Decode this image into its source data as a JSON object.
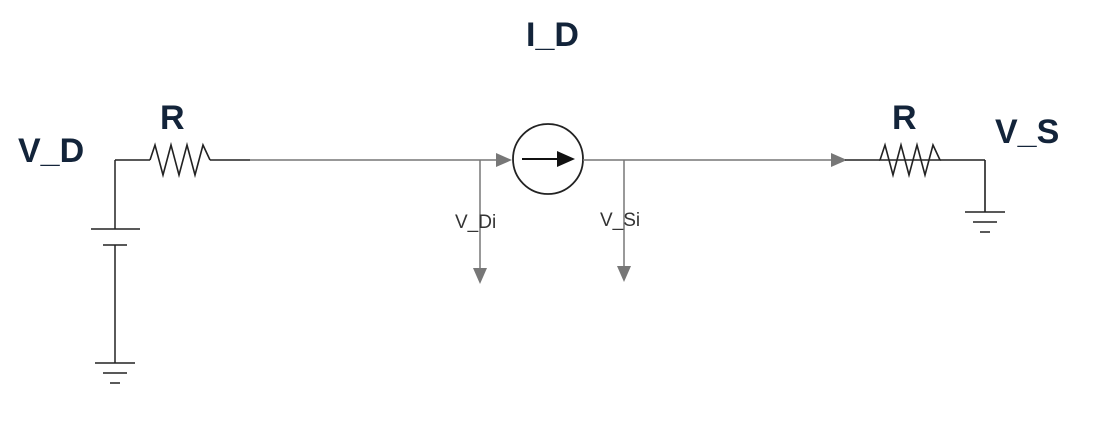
{
  "labels": {
    "current": "I_D",
    "drain_voltage": "V_D",
    "source_voltage": "V_S",
    "resistor_left": "R",
    "resistor_right": "R",
    "drain_internal": "V_Di",
    "source_internal": "V_Si"
  },
  "colors": {
    "label": "#13243a",
    "wire": "#777777",
    "symbol": "#222222"
  }
}
